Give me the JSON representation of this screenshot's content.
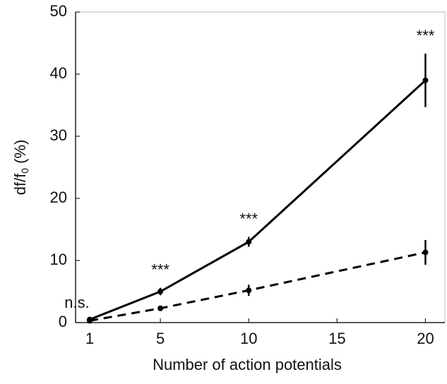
{
  "chart_data": {
    "type": "line",
    "xlabel": "Number of action potentials",
    "ylabel": [
      "df/f",
      "0",
      " (%)"
    ],
    "x": [
      1,
      5,
      10,
      20
    ],
    "series": [
      {
        "color": "#000000",
        "dash": false,
        "values": [
          0.5,
          5,
          13,
          39
        ],
        "errors": [
          0.3,
          0.6,
          0.8,
          4.3
        ]
      },
      {
        "color": "#000000",
        "dash": true,
        "values": [
          0.3,
          2.3,
          5.2,
          11.3
        ],
        "errors": [
          0.2,
          0.3,
          0.9,
          2
        ]
      }
    ],
    "annotations": [
      "n.s.",
      "***",
      "***",
      "***"
    ],
    "xlim": [
      0.2,
      21.1
    ],
    "xticks": [
      1,
      5,
      10,
      15,
      20
    ],
    "ylim": [
      0,
      50
    ],
    "yticks": [
      0,
      10,
      20,
      30,
      40,
      50
    ],
    "grid": false
  }
}
